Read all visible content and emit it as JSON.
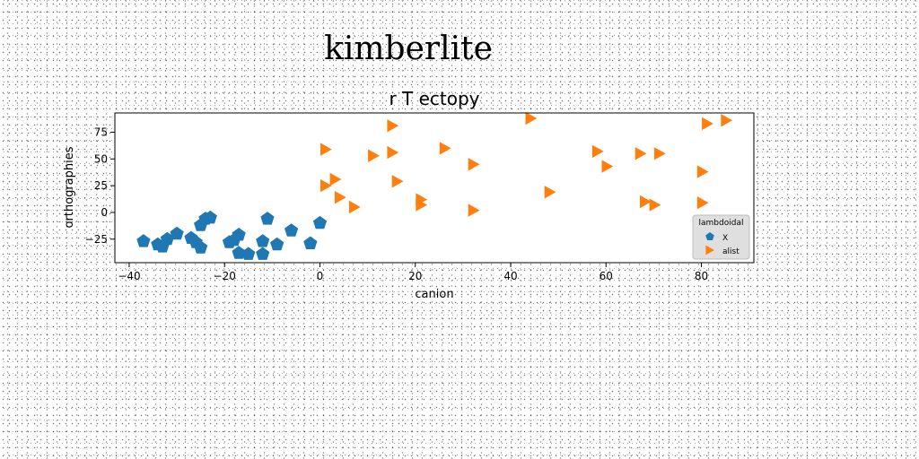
{
  "figure": {
    "suptitle": "kimberlite"
  },
  "chart_data": {
    "type": "scatter",
    "title": "r T ectopy",
    "xlabel": "canion",
    "ylabel": "orthographies",
    "xlim": [
      -43,
      91
    ],
    "ylim": [
      -47,
      93
    ],
    "xticks": [
      -40,
      -20,
      0,
      20,
      40,
      60,
      80
    ],
    "yticks": [
      -25,
      0,
      25,
      50,
      75
    ],
    "grid": false,
    "legend": {
      "title": "lambdoidal",
      "placement": "lower-right"
    },
    "series": [
      {
        "name": "X",
        "marker": "pentagon",
        "color": "#1f77b4",
        "points": [
          [
            -37,
            -27
          ],
          [
            -34,
            -30
          ],
          [
            -33,
            -32
          ],
          [
            -32,
            -25
          ],
          [
            -30,
            -20
          ],
          [
            -27,
            -24
          ],
          [
            -26,
            -28
          ],
          [
            -25,
            -12
          ],
          [
            -25,
            -33
          ],
          [
            -24,
            -6
          ],
          [
            -23,
            -5
          ],
          [
            -19,
            -28
          ],
          [
            -18,
            -26
          ],
          [
            -17,
            -21
          ],
          [
            -17,
            -38
          ],
          [
            -15,
            -39
          ],
          [
            -12,
            -27
          ],
          [
            -12,
            -39
          ],
          [
            -11,
            -6
          ],
          [
            -9,
            -30
          ],
          [
            -6,
            -17
          ],
          [
            -2,
            -29
          ],
          [
            0,
            -10
          ]
        ]
      },
      {
        "name": "alist",
        "marker": "triangle-right",
        "color": "#ff7f0e",
        "points": [
          [
            1,
            59
          ],
          [
            1,
            25
          ],
          [
            3,
            31
          ],
          [
            4,
            14
          ],
          [
            7,
            5
          ],
          [
            11,
            53
          ],
          [
            15,
            81
          ],
          [
            15,
            56
          ],
          [
            16,
            29
          ],
          [
            21,
            12
          ],
          [
            21,
            7
          ],
          [
            26,
            60
          ],
          [
            32,
            45
          ],
          [
            32,
            2
          ],
          [
            44,
            88
          ],
          [
            48,
            19
          ],
          [
            58,
            57
          ],
          [
            60,
            43
          ],
          [
            67,
            55
          ],
          [
            68,
            10
          ],
          [
            70,
            7
          ],
          [
            71,
            55
          ],
          [
            80,
            38
          ],
          [
            80,
            9
          ],
          [
            81,
            83
          ],
          [
            85,
            86
          ]
        ]
      }
    ]
  }
}
